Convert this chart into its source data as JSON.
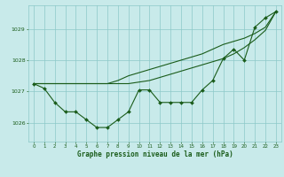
{
  "title": "Graphe pression niveau de la mer (hPa)",
  "bg_color": "#c8eaea",
  "grid_color": "#8cc8c8",
  "line_color": "#1a5c1a",
  "text_color": "#1a5c1a",
  "xlim": [
    -0.5,
    23.5
  ],
  "ylim": [
    1025.4,
    1029.75
  ],
  "yticks": [
    1026,
    1027,
    1028,
    1029
  ],
  "xticks": [
    0,
    1,
    2,
    3,
    4,
    5,
    6,
    7,
    8,
    9,
    10,
    11,
    12,
    13,
    14,
    15,
    16,
    17,
    18,
    19,
    20,
    21,
    22,
    23
  ],
  "series1": [
    1027.25,
    1027.1,
    1026.65,
    1026.35,
    1026.35,
    1026.1,
    1025.85,
    1025.85,
    1026.1,
    1026.35,
    1027.05,
    1027.05,
    1026.65,
    1026.65,
    1026.65,
    1026.65,
    1027.05,
    1027.35,
    1028.05,
    1028.35,
    1028.0,
    1029.05,
    1029.35,
    1029.55
  ],
  "series2": [
    1027.25,
    1027.25,
    1027.25,
    1027.25,
    1027.25,
    1027.25,
    1027.25,
    1027.25,
    1027.25,
    1027.25,
    1027.3,
    1027.35,
    1027.45,
    1027.55,
    1027.65,
    1027.75,
    1027.85,
    1027.95,
    1028.05,
    1028.2,
    1028.4,
    1028.65,
    1028.95,
    1029.55
  ],
  "series3": [
    1027.25,
    1027.25,
    1027.25,
    1027.25,
    1027.25,
    1027.25,
    1027.25,
    1027.25,
    1027.35,
    1027.5,
    1027.6,
    1027.7,
    1027.8,
    1027.9,
    1028.0,
    1028.1,
    1028.2,
    1028.35,
    1028.5,
    1028.6,
    1028.7,
    1028.85,
    1029.05,
    1029.55
  ]
}
